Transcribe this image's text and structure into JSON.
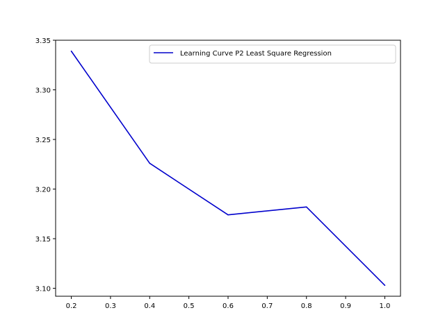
{
  "chart_data": {
    "type": "line",
    "title": "",
    "xlabel": "",
    "ylabel": "",
    "x": [
      0.2,
      0.4,
      0.6,
      0.8,
      1.0
    ],
    "series": [
      {
        "name": "Learning Curve P2 Least Square Regression",
        "values": [
          3.339,
          3.226,
          3.174,
          3.182,
          3.103
        ],
        "color": "#0000cc"
      }
    ],
    "xlim": [
      0.16,
      1.04
    ],
    "ylim": [
      3.092,
      3.35
    ],
    "xticks": [
      0.2,
      0.3,
      0.4,
      0.5,
      0.6,
      0.7,
      0.8,
      0.9,
      1.0
    ],
    "xtick_labels": [
      "0.2",
      "0.3",
      "0.4",
      "0.5",
      "0.6",
      "0.7",
      "0.8",
      "0.9",
      "1.0"
    ],
    "yticks": [
      3.1,
      3.15,
      3.2,
      3.25,
      3.3,
      3.35
    ],
    "ytick_labels": [
      "3.10",
      "3.15",
      "3.20",
      "3.25",
      "3.30",
      "3.35"
    ],
    "grid": false,
    "legend_position": "top-right"
  }
}
